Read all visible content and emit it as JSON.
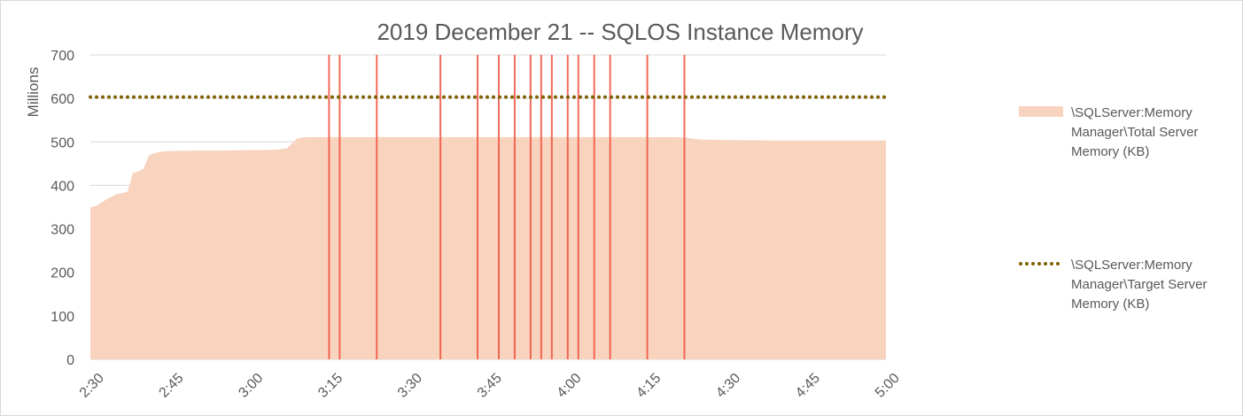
{
  "chart_data": {
    "type": "area",
    "title": "2019 December 21 -- SQLOS Instance Memory",
    "ylabel": "Millions",
    "xlabel": "",
    "ylim": [
      0,
      700
    ],
    "yticks": [
      "0",
      "100",
      "200",
      "300",
      "400",
      "500",
      "600",
      "700"
    ],
    "xlim": [
      "2:30",
      "5:00"
    ],
    "xticks": [
      "2:30",
      "2:45",
      "3:00",
      "3:15",
      "3:30",
      "3:45",
      "4:00",
      "4:15",
      "4:30",
      "4:45",
      "5:00"
    ],
    "grid": true,
    "legend_position": "right",
    "series": [
      {
        "name": "\\SQLServer:Memory Manager\\Total Server Memory (KB)",
        "style": "area",
        "color": "#f8d4bf",
        "points": [
          [
            "2:30",
            350
          ],
          [
            "2:31",
            352
          ],
          [
            "2:32",
            360
          ],
          [
            "2:33",
            368
          ],
          [
            "2:34",
            374
          ],
          [
            "2:35",
            380
          ],
          [
            "2:36",
            382
          ],
          [
            "2:37",
            385
          ],
          [
            "2:38",
            428
          ],
          [
            "2:39",
            432
          ],
          [
            "2:40",
            438
          ],
          [
            "2:41",
            468
          ],
          [
            "2:42",
            474
          ],
          [
            "2:43",
            477
          ],
          [
            "2:45",
            479
          ],
          [
            "2:50",
            480
          ],
          [
            "2:55",
            480
          ],
          [
            "3:00",
            481
          ],
          [
            "3:05",
            482
          ],
          [
            "3:07",
            485
          ],
          [
            "3:09",
            508
          ],
          [
            "3:10",
            510
          ],
          [
            "3:11",
            511
          ],
          [
            "3:20",
            511
          ],
          [
            "3:40",
            511
          ],
          [
            "4:00",
            511
          ],
          [
            "4:20",
            511
          ],
          [
            "4:22",
            510
          ],
          [
            "4:25",
            505
          ],
          [
            "4:30",
            504
          ],
          [
            "4:40",
            503
          ],
          [
            "4:50",
            503
          ],
          [
            "5:00",
            503
          ]
        ],
        "spikes": [
          "3:15",
          "3:17",
          "3:24",
          "3:36",
          "3:43",
          "3:47",
          "3:50",
          "3:53",
          "3:55",
          "3:57",
          "4:00",
          "4:02",
          "4:05",
          "4:08",
          "4:15",
          "4:22"
        ],
        "spike_color": "#f0523f"
      },
      {
        "name": "\\SQLServer:Memory Manager\\Target Server Memory (KB)",
        "style": "dotted-line",
        "color": "#7f6000",
        "points": [
          [
            "2:30",
            603
          ],
          [
            "5:00",
            603
          ]
        ]
      }
    ],
    "legend": [
      {
        "lines": [
          "\\SQLServer:Memory",
          "Manager\\Total Server",
          "Memory (KB)"
        ]
      },
      {
        "lines": [
          "\\SQLServer:Memory",
          "Manager\\Target Server",
          "Memory (KB)"
        ]
      }
    ]
  }
}
